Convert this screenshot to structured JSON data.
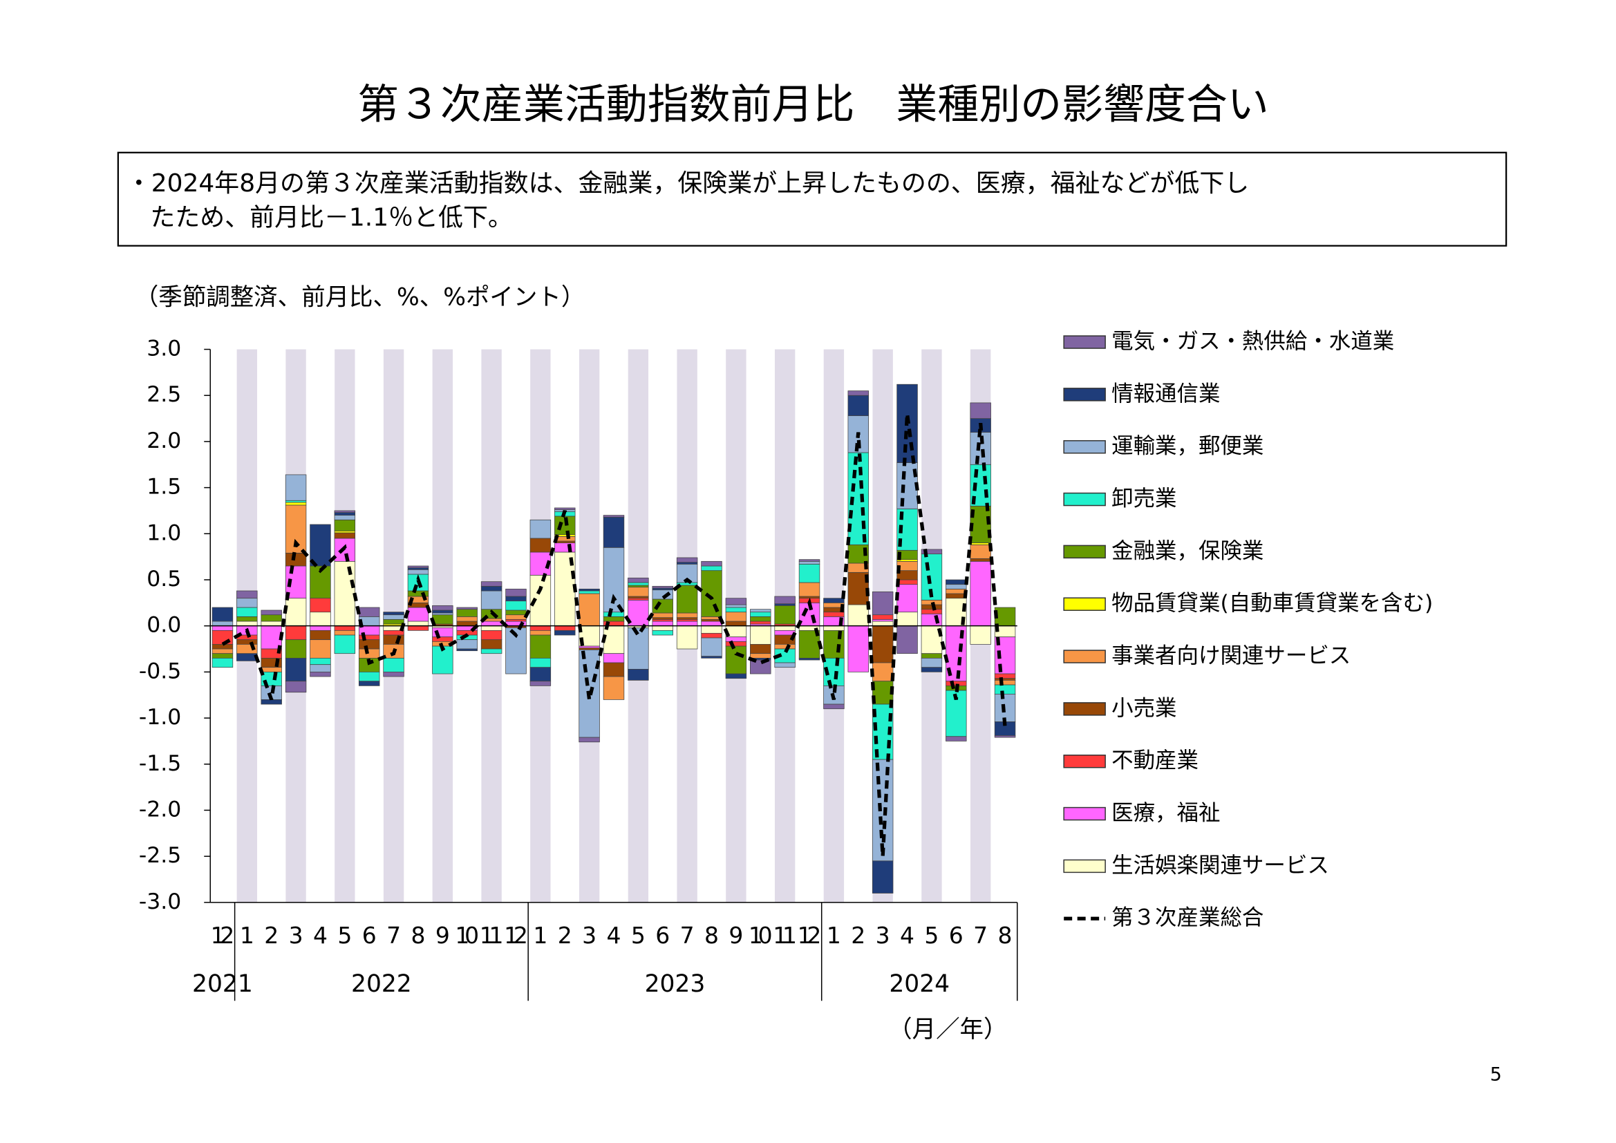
{
  "title": "第３次産業活動指数前月比　業種別の影響度合い",
  "summary": [
    "・2024年8月の第３次産業活動指数は、金融業，保険業が上昇したものの、医療，福祉などが低下し",
    "たため、前月比－1.1％と低下。"
  ],
  "page_number": "5",
  "chart_data": {
    "type": "bar",
    "stacked": true,
    "y_label": "（季節調整済、前月比、%、%ポイント）",
    "x_label": "（月／年）",
    "categories": [
      "12",
      "1",
      "2",
      "3",
      "4",
      "5",
      "6",
      "7",
      "8",
      "9",
      "10",
      "11",
      "12",
      "1",
      "2",
      "3",
      "4",
      "5",
      "6",
      "7",
      "8",
      "9",
      "10",
      "11",
      "12",
      "1",
      "2",
      "3",
      "4",
      "5",
      "6",
      "7",
      "8"
    ],
    "years": [
      "2021",
      "2022",
      "2023",
      "2024"
    ],
    "ylim": [
      -3,
      3
    ],
    "yticks": [
      {
        "value": 3,
        "label": "3.0"
      },
      2.5,
      {
        "value": 2,
        "label": "2.0"
      },
      1.5,
      {
        "value": 1,
        "label": "1.0"
      },
      0.5,
      {
        "value": 0,
        "label": "0.0"
      },
      -0.5,
      {
        "value": -1,
        "label": "-1.0"
      },
      -1.5,
      {
        "value": -2,
        "label": "-2.0"
      },
      -2.5,
      {
        "value": -3,
        "label": "-3.0"
      }
    ],
    "series": [
      {
        "name": "電気・ガス・熱供給・水道業",
        "color": "#8064a2",
        "values": [
          0,
          0.08,
          0.05,
          -0.12,
          -0.05,
          0.02,
          0.1,
          -0.05,
          0.02,
          0.05,
          0.02,
          0.05,
          0.08,
          -0.05,
          0.02,
          -0.05,
          0.02,
          0.05,
          0.02,
          0.05,
          0.05,
          0.07,
          -0.15,
          0.08,
          0.02,
          -0.05,
          0.05,
          0.25,
          -0.3,
          0.05,
          -0.05,
          0.17,
          -0.02
        ]
      },
      {
        "name": "情報通信業",
        "color": "#1f3d7a",
        "values": [
          0.15,
          -0.08,
          -0.05,
          -0.25,
          0.45,
          0.03,
          -0.05,
          0.03,
          0.02,
          0.03,
          -0.02,
          0.05,
          0.05,
          -0.15,
          -0.05,
          0.02,
          0.33,
          -0.12,
          0.02,
          0.02,
          -0.02,
          -0.05,
          -0.02,
          0.02,
          -0.02,
          0.05,
          0.22,
          -0.35,
          0.85,
          -0.05,
          0.05,
          0.15,
          -0.15
        ]
      },
      {
        "name": "運輸業，郵便業",
        "color": "#95b3d7",
        "values": [
          0.05,
          0.1,
          -0.15,
          0.28,
          -0.08,
          0.05,
          0.1,
          0.05,
          0.05,
          0.02,
          -0.1,
          0.2,
          -0.5,
          0.2,
          0.02,
          -0.95,
          0.7,
          -0.45,
          0.1,
          0.2,
          -0.2,
          0.03,
          0.03,
          -0.05,
          0.03,
          -0.2,
          0.4,
          -1.1,
          0.5,
          -0.1,
          0.05,
          0.35,
          -0.3
        ]
      },
      {
        "name": "卸売業",
        "color": "#22f0cc",
        "values": [
          -0.1,
          0.1,
          -0.15,
          0.02,
          -0.07,
          -0.2,
          -0.1,
          -0.15,
          0.18,
          -0.3,
          -0.05,
          -0.05,
          0.1,
          -0.1,
          0.05,
          0.03,
          0.05,
          0.03,
          -0.05,
          0.03,
          0.05,
          0.05,
          0.05,
          -0.15,
          0.2,
          -0.3,
          1.0,
          -0.6,
          0.45,
          0.5,
          -0.5,
          0.45,
          -0.1
        ]
      },
      {
        "name": "金融業，保険業",
        "color": "#669900",
        "values": [
          -0.05,
          0.05,
          0.07,
          -0.2,
          0.35,
          0.12,
          -0.15,
          0.05,
          0.06,
          0.1,
          0.08,
          0.1,
          0.05,
          -0.25,
          0.2,
          0,
          0.05,
          0.02,
          0.15,
          0.3,
          0.5,
          -0.3,
          0.05,
          0.2,
          -0.3,
          -0.3,
          0.2,
          -0.25,
          0.1,
          -0.05,
          -0.05,
          0.4,
          0.2
        ]
      },
      {
        "name": "物品賃貸業(自動車賃貸業を含む)",
        "color": "#ffff00",
        "values": [
          0,
          0,
          0,
          0.03,
          0,
          0.02,
          0,
          0.02,
          0,
          0,
          0,
          0,
          0,
          0,
          0.02,
          0,
          0,
          0,
          0,
          0,
          0,
          0,
          0,
          0,
          0,
          0,
          0,
          0,
          0.02,
          0,
          0,
          0.02,
          0
        ]
      },
      {
        "name": "事業者向け関連サービス",
        "color": "#f79646",
        "values": [
          -0.05,
          -0.1,
          -0.05,
          0.52,
          -0.2,
          -0.05,
          -0.1,
          -0.15,
          0.07,
          -0.05,
          0.05,
          0.03,
          0.05,
          -0.05,
          0.05,
          0.35,
          -0.25,
          0.1,
          0.05,
          0.05,
          0.03,
          0.1,
          -0.05,
          -0.05,
          0.15,
          0.05,
          0.1,
          -0.2,
          0.1,
          0.05,
          0.05,
          0.15,
          -0.05
        ]
      },
      {
        "name": "小売業",
        "color": "#984807",
        "values": [
          -0.05,
          -0.05,
          -0.1,
          0.14,
          -0.1,
          0.06,
          -0.1,
          -0.1,
          0.05,
          0.02,
          0.05,
          -0.1,
          -0.02,
          0.15,
          0.02,
          -0.02,
          -0.15,
          0.02,
          0.02,
          0.02,
          0.02,
          0.05,
          -0.1,
          -0.1,
          0.02,
          0.05,
          0.35,
          -0.4,
          0.1,
          0.05,
          0.05,
          0.03,
          -0.02
        ]
      },
      {
        "name": "不動産業",
        "color": "#ff3b3b",
        "values": [
          -0.15,
          -0.05,
          -0.1,
          -0.15,
          0.15,
          -0.05,
          -0.05,
          -0.05,
          -0.05,
          -0.05,
          -0.05,
          -0.1,
          0.02,
          -0.05,
          -0.05,
          0,
          0.05,
          0.02,
          0.02,
          0.02,
          -0.05,
          -0.05,
          0.03,
          0.02,
          0.05,
          0.05,
          0,
          0.05,
          0.05,
          0.05,
          -0.05,
          0,
          -0.05
        ]
      },
      {
        "name": "医療，福祉",
        "color": "#ff66ff",
        "values": [
          -0.05,
          -0.1,
          -0.25,
          0.35,
          -0.05,
          0.25,
          -0.1,
          0,
          0.15,
          -0.1,
          -0.05,
          0.05,
          0.05,
          0.25,
          0.1,
          -0.02,
          -0.1,
          0.28,
          0.05,
          0.05,
          0.05,
          -0.05,
          0.02,
          -0.05,
          0.25,
          0.1,
          -0.5,
          0.02,
          0.3,
          0.13,
          -0.6,
          0.7,
          -0.4
        ]
      },
      {
        "name": "生活娯楽関連サービス",
        "color": "#ffffcc",
        "values": [
          0,
          0.05,
          0.05,
          0.3,
          0.15,
          0.7,
          0,
          -0.05,
          0.05,
          -0.02,
          0,
          -0.05,
          0,
          0.55,
          0.8,
          -0.22,
          -0.3,
          -0.02,
          -0.05,
          -0.25,
          -0.08,
          -0.12,
          -0.2,
          -0.05,
          -0.05,
          -0.05,
          0.23,
          0.05,
          0.15,
          -0.3,
          0.3,
          -0.2,
          -0.12
        ]
      }
    ],
    "total": {
      "name": "第３次産業総合",
      "color": "#000000",
      "values": [
        -0.2,
        -0.05,
        -0.8,
        0.9,
        0.6,
        0.85,
        -0.4,
        -0.3,
        0.5,
        -0.25,
        -0.1,
        0.15,
        -0.1,
        0.4,
        1.25,
        -0.8,
        0.3,
        -0.1,
        0.3,
        0.5,
        0.3,
        -0.3,
        -0.4,
        -0.3,
        0.25,
        -0.8,
        2.1,
        -2.5,
        2.3,
        0.3,
        -0.8,
        2.2,
        -1.1
      ]
    },
    "stripe_color": "#e0dbe8",
    "legend": "right"
  }
}
